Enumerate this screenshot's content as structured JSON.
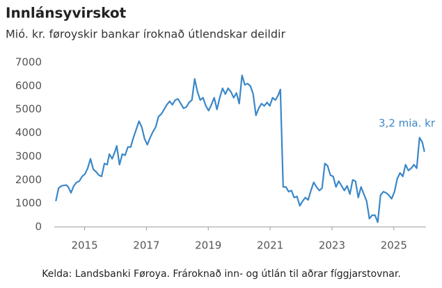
{
  "chart_data": {
    "type": "line",
    "title": "Innlánsyvirskot",
    "subtitle": "Mió. kr. føroyskir bankar íroknað útlendskar deildir",
    "source": "Kelda: Landsbanki Føroya. Frároknað inn- og útlán til aðrar fíggjarstovnar.",
    "annotation": "3,2 mia. kr",
    "x": [
      2014.07,
      2014.16,
      2014.25,
      2014.41,
      2014.47,
      2014.56,
      2014.65,
      2014.74,
      2014.83,
      2014.92,
      2015.01,
      2015.1,
      2015.19,
      2015.28,
      2015.37,
      2015.46,
      2015.55,
      2015.64,
      2015.73,
      2015.8,
      2015.89,
      2015.98,
      2016.04,
      2016.13,
      2016.22,
      2016.31,
      2016.4,
      2016.49,
      2016.58,
      2016.67,
      2016.76,
      2016.85,
      2016.94,
      2017.03,
      2017.12,
      2017.21,
      2017.3,
      2017.39,
      2017.48,
      2017.57,
      2017.66,
      2017.75,
      2017.84,
      2017.93,
      2018.02,
      2018.11,
      2018.2,
      2018.29,
      2018.38,
      2018.47,
      2018.56,
      2018.65,
      2018.74,
      2018.83,
      2018.92,
      2019.01,
      2019.1,
      2019.19,
      2019.28,
      2019.37,
      2019.46,
      2019.55,
      2019.64,
      2019.73,
      2019.82,
      2019.91,
      2020.0,
      2020.09,
      2020.18,
      2020.27,
      2020.36,
      2020.45,
      2020.54,
      2020.63,
      2020.72,
      2020.81,
      2020.9,
      2020.99,
      2021.08,
      2021.17,
      2021.26,
      2021.33,
      2021.42,
      2021.51,
      2021.6,
      2021.69,
      2021.78,
      2021.87,
      2021.96,
      2022.05,
      2022.14,
      2022.23,
      2022.32,
      2022.41,
      2022.5,
      2022.59,
      2022.68,
      2022.77,
      2022.86,
      2022.95,
      2023.04,
      2023.13,
      2023.22,
      2023.31,
      2023.4,
      2023.49,
      2023.58,
      2023.67,
      2023.76,
      2023.85,
      2023.94,
      2024.03,
      2024.12,
      2024.21,
      2024.3,
      2024.39,
      2024.48,
      2024.57,
      2024.66,
      2024.75,
      2024.84,
      2024.93,
      2025.02,
      2025.11,
      2025.2,
      2025.29,
      2025.38,
      2025.47,
      2025.56,
      2025.65,
      2025.74,
      2025.83,
      2025.92,
      2025.99
    ],
    "series": [
      {
        "name": "Innlánsyvirskot",
        "color": "#3a87c8",
        "values": [
          1100,
          1650,
          1750,
          1780,
          1700,
          1450,
          1750,
          1900,
          1950,
          2150,
          2250,
          2500,
          2900,
          2450,
          2350,
          2200,
          2150,
          2700,
          2650,
          3100,
          2900,
          3200,
          3450,
          2650,
          3100,
          3050,
          3400,
          3400,
          3800,
          4150,
          4500,
          4250,
          3750,
          3500,
          3800,
          4050,
          4250,
          4700,
          4800,
          5000,
          5200,
          5350,
          5200,
          5400,
          5450,
          5250,
          5050,
          5100,
          5300,
          5400,
          6300,
          5750,
          5400,
          5500,
          5150,
          4950,
          5200,
          5500,
          5000,
          5500,
          5900,
          5650,
          5900,
          5750,
          5500,
          5700,
          5250,
          6450,
          6050,
          6100,
          6000,
          5650,
          4750,
          5050,
          5250,
          5150,
          5300,
          5150,
          5500,
          5400,
          5600,
          5850,
          1700,
          1700,
          1500,
          1550,
          1250,
          1300,
          900,
          1100,
          1250,
          1150,
          1550,
          1900,
          1700,
          1550,
          1650,
          2700,
          2600,
          2200,
          2150,
          1700,
          1950,
          1750,
          1550,
          1750,
          1400,
          2000,
          1950,
          1250,
          1700,
          1400,
          1100,
          350,
          500,
          500,
          200,
          1350,
          1500,
          1450,
          1350,
          1200,
          1500,
          2050,
          2300,
          2150,
          2650,
          2400,
          2500,
          2650,
          2500,
          3800,
          3600,
          3200
        ]
      }
    ],
    "xlim": [
      2014.02,
      2026.04
    ],
    "xticks": [
      2015,
      2017,
      2019,
      2021,
      2023,
      2025
    ],
    "ylim": [
      0,
      7000
    ],
    "yticks": [
      0,
      1000,
      2000,
      3000,
      4000,
      5000,
      6000,
      7000
    ],
    "grid": false
  }
}
